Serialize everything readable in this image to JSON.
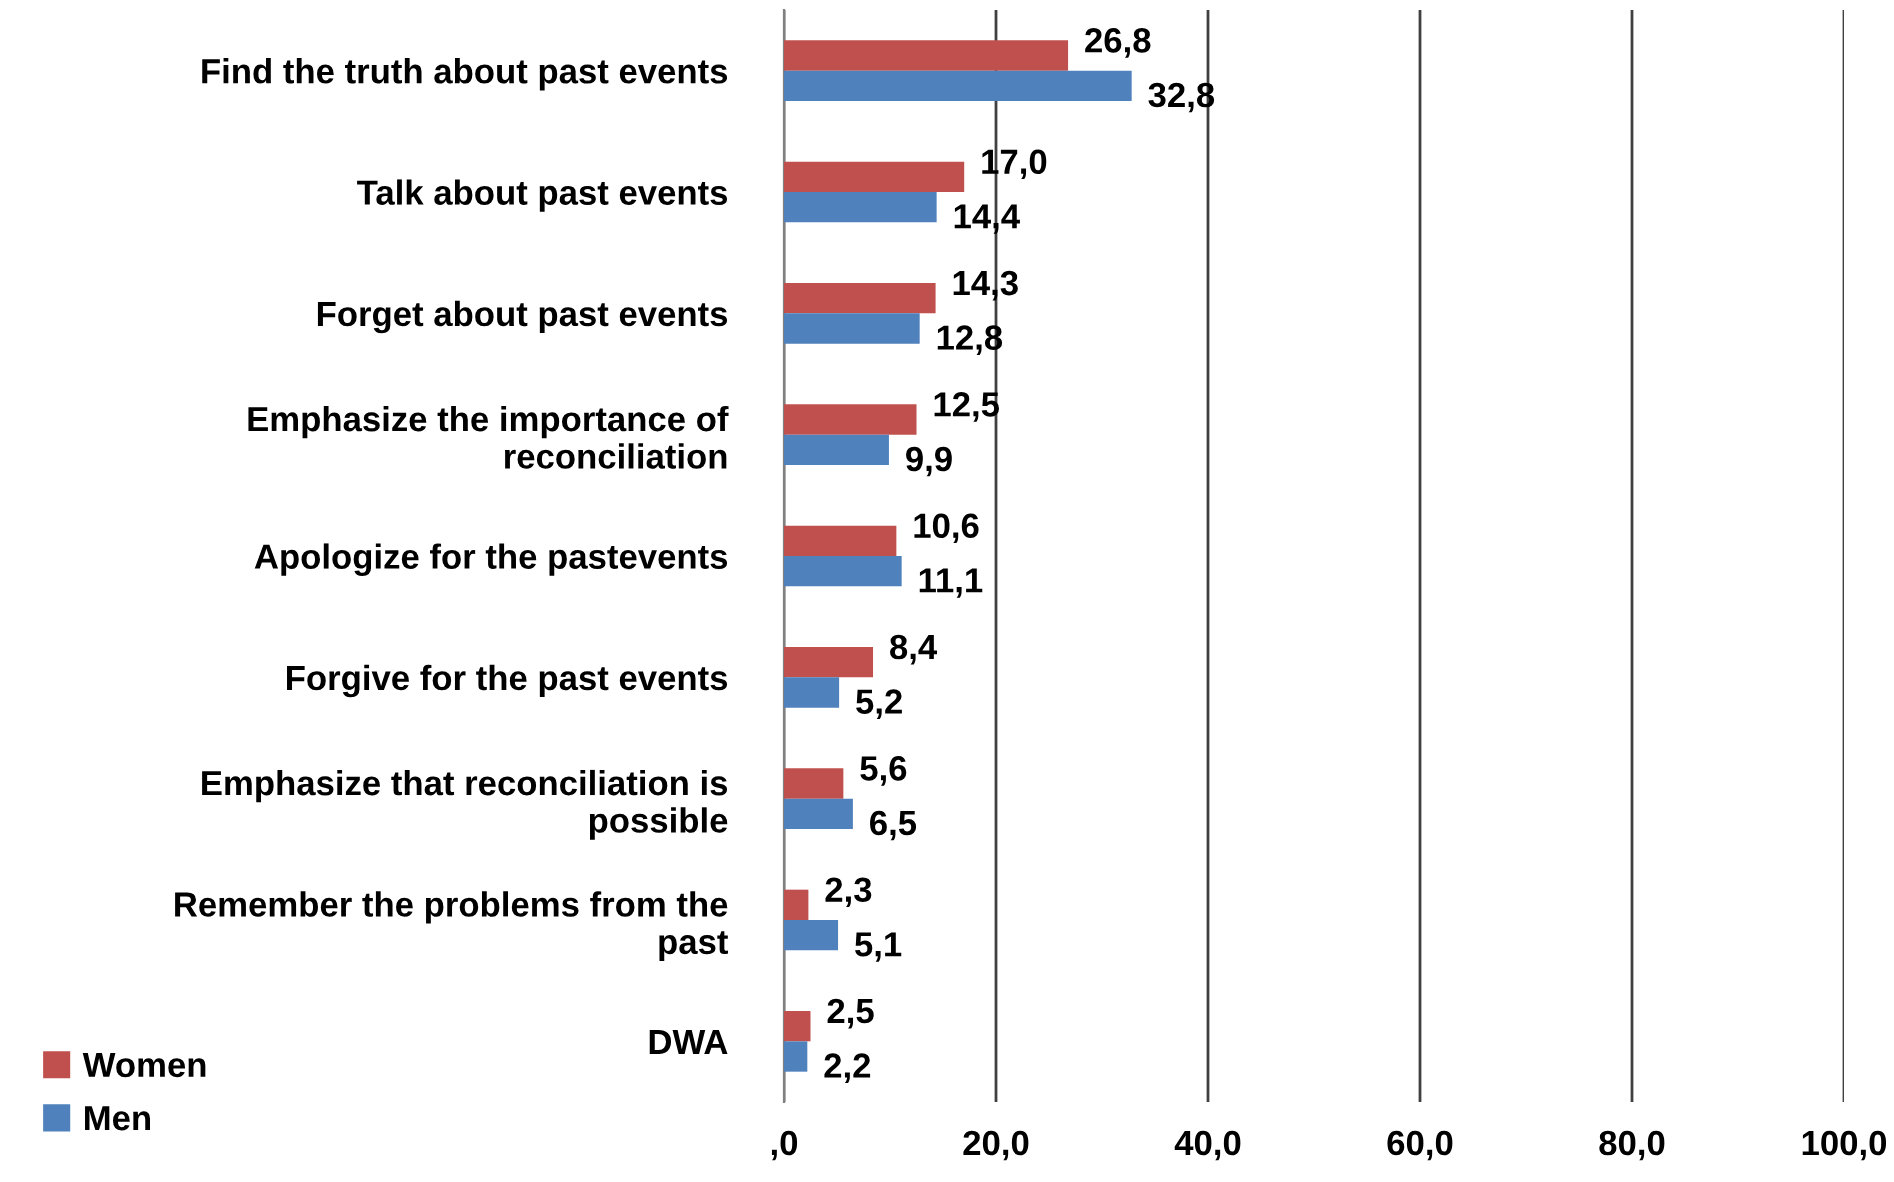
{
  "chart_data": {
    "type": "bar",
    "orientation": "horizontal",
    "categories": [
      "Find the truth about past events",
      "Talk about past events",
      "Forget about past events",
      "Emphasize the importance of\nreconciliation",
      "Apologize for the pastevents",
      "Forgive for the past events",
      "Emphasize that reconciliation is\npossible",
      "Remember the problems from the\npast",
      "DWA"
    ],
    "series": [
      {
        "name": "Women",
        "color": "#c0504d",
        "values": [
          26.8,
          17.0,
          14.3,
          12.5,
          10.6,
          8.4,
          5.6,
          2.3,
          2.5
        ],
        "value_labels": [
          "26,8",
          "17,0",
          "14,3",
          "12,5",
          "10,6",
          "8,4",
          "5,6",
          "2,3",
          "2,5"
        ]
      },
      {
        "name": "Men",
        "color": "#4f81bd",
        "values": [
          32.8,
          14.4,
          12.8,
          9.9,
          11.1,
          5.2,
          6.5,
          5.1,
          2.2
        ],
        "value_labels": [
          "32,8",
          "14,4",
          "12,8",
          "9,9",
          "11,1",
          "5,2",
          "6,5",
          "5,1",
          "2,2"
        ]
      }
    ],
    "xlim": [
      0,
      100
    ],
    "xticks": [
      {
        "value": 0,
        "label": ",0"
      },
      {
        "value": 20,
        "label": "20,0"
      },
      {
        "value": 40,
        "label": "40,0"
      },
      {
        "value": 60,
        "label": "60,0"
      },
      {
        "value": 80,
        "label": "80,0"
      },
      {
        "value": 100,
        "label": "100,0"
      }
    ],
    "grid": "x",
    "legend": "bottom left"
  }
}
